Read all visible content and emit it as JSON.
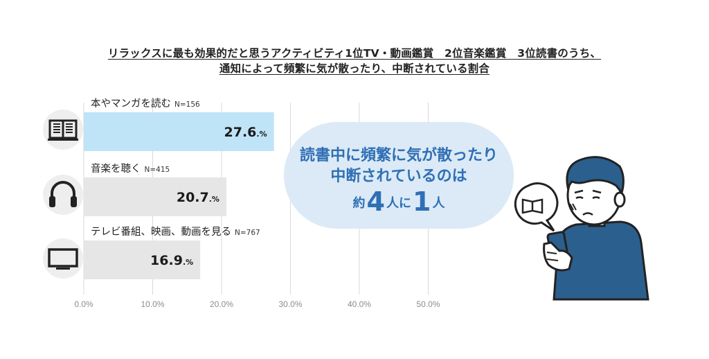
{
  "title_lines": [
    "リラックスに最も効果的だと思うアクティビティ1位TV・動画鑑賞　2位音楽鑑賞　3位読書のうち、",
    "通知によって頻繁に気が散ったり、中断されている割合"
  ],
  "chart_data": {
    "type": "bar",
    "orientation": "horizontal",
    "title": "リラックスに最も効果的だと思うアクティビティ1位TV・動画鑑賞　2位音楽鑑賞　3位読書のうち、通知によって頻繁に気が散ったり、中断されている割合",
    "categories": [
      "本やマンガを読む",
      "音楽を聴く",
      "テレビ番組、映画、動画を見る"
    ],
    "n_labels": [
      "N=156",
      "N=415",
      "N=767"
    ],
    "values": [
      27.6,
      20.7,
      16.9
    ],
    "value_labels": [
      "27.6",
      "20.7",
      "16.9"
    ],
    "value_unit": ".%",
    "xlim": [
      0,
      50
    ],
    "ticks": [
      "0.0%",
      "10.0%",
      "20.0%",
      "30.0%",
      "40.0%",
      "50.0%"
    ],
    "grid": true,
    "highlight_index": 0,
    "colors": {
      "highlight": "#bfe3f7",
      "normal": "#e6e6e6",
      "grid": "#d9d9d9",
      "icon_bg": "#eeeeee",
      "icon": "#222222"
    },
    "icons": [
      "book-icon",
      "headphones-icon",
      "tv-icon"
    ]
  },
  "callout": {
    "line1": "読書中に頻繁に気が散ったり",
    "line2": "中断されているのは",
    "pre": "約",
    "num1": "4",
    "mid": "人に",
    "num2": "1",
    "post": "人",
    "color": "#2f6fb4",
    "bg": "#dbeaf6"
  },
  "illustration": "person-reading-phone-icon"
}
